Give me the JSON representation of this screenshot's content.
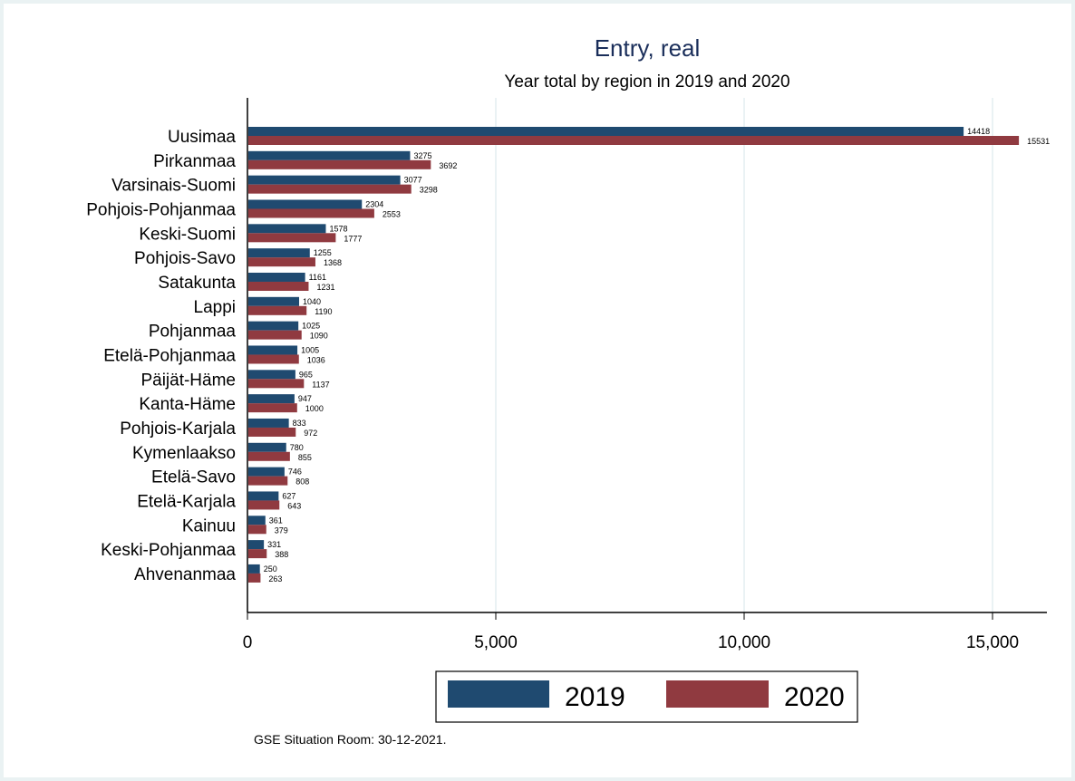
{
  "chart_data": {
    "type": "bar",
    "orientation": "horizontal",
    "title": "Entry, real",
    "subtitle": "Year total by region in 2019 and 2020",
    "xlabel": "",
    "ylabel": "",
    "xlim": [
      0,
      16100
    ],
    "xticks": [
      0,
      5000,
      10000,
      15000
    ],
    "xtick_labels": [
      "0",
      "5,000",
      "10,000",
      "15,000"
    ],
    "grid": true,
    "legend_position": "bottom-center",
    "categories": [
      "Uusimaa",
      "Pirkanmaa",
      "Varsinais-Suomi",
      "Pohjois-Pohjanmaa",
      "Keski-Suomi",
      "Pohjois-Savo",
      "Satakunta",
      "Lappi",
      "Pohjanmaa",
      "Etelä-Pohjanmaa",
      "Päijät-Häme",
      "Kanta-Häme",
      "Pohjois-Karjala",
      "Kymenlaakso",
      "Etelä-Savo",
      "Etelä-Karjala",
      "Kainuu",
      "Keski-Pohjanmaa",
      "Ahvenanmaa"
    ],
    "series": [
      {
        "name": "2019",
        "color": "#1f4a70",
        "values": [
          14418,
          3275,
          3077,
          2304,
          1578,
          1255,
          1161,
          1040,
          1025,
          1005,
          965,
          947,
          833,
          780,
          746,
          627,
          361,
          331,
          250
        ]
      },
      {
        "name": "2020",
        "color": "#903a40",
        "values": [
          15531,
          3692,
          3298,
          2553,
          1777,
          1368,
          1231,
          1190,
          1090,
          1036,
          1137,
          1000,
          972,
          855,
          808,
          643,
          379,
          388,
          263
        ]
      }
    ],
    "note": "GSE Situation Room: 30-12-2021."
  }
}
